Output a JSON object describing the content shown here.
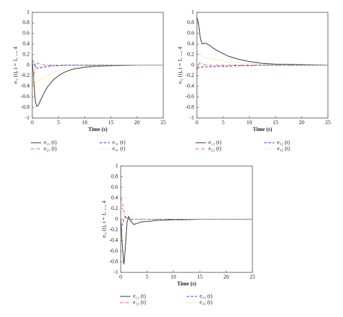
{
  "chart_data": [
    {
      "type": "line",
      "xlabel": "Time (s)",
      "ylabel": "eᵢ₁ (t), i = 1, ..., 4",
      "x": [
        0,
        0.3,
        0.6,
        0.9,
        1.2,
        1.5,
        2,
        2.5,
        3,
        4,
        5,
        6,
        7,
        8,
        10,
        12,
        15,
        20,
        25
      ],
      "xlim": [
        0,
        25
      ],
      "xticks": [
        0,
        5,
        10,
        15,
        20,
        25
      ],
      "ylim": [
        -1,
        1
      ],
      "yticks": [
        -1,
        -0.8,
        -0.6,
        -0.4,
        -0.2,
        0,
        0.2,
        0.4,
        0.6,
        0.8,
        1
      ],
      "series": [
        {
          "name": "e₁₁ (t)",
          "color": "#333333",
          "line_style": "solid",
          "values": [
            0.05,
            -0.3,
            -0.7,
            -0.78,
            -0.75,
            -0.68,
            -0.58,
            -0.48,
            -0.4,
            -0.28,
            -0.2,
            -0.14,
            -0.1,
            -0.07,
            -0.04,
            -0.02,
            -0.01,
            0,
            0
          ]
        },
        {
          "name": "e₂₁ (t)",
          "color": "#e0533a",
          "line_style": "dashdot",
          "values": [
            -0.4,
            -0.2,
            0,
            0.05,
            0.03,
            0.02,
            0.01,
            0,
            0,
            0,
            0,
            0,
            0,
            0,
            0,
            0,
            0,
            0,
            0
          ]
        },
        {
          "name": "e₃₁ (t)",
          "color": "#3a3ad0",
          "line_style": "dashed",
          "values": [
            0.1,
            0.05,
            -0.02,
            -0.05,
            -0.06,
            -0.05,
            -0.04,
            -0.03,
            -0.02,
            -0.01,
            -0.01,
            0,
            0,
            0,
            0,
            0,
            0,
            0,
            0
          ]
        },
        {
          "name": "e₄₁ (t)",
          "color": "#e3d070",
          "line_style": "dotted",
          "values": [
            -0.1,
            -0.3,
            -0.35,
            -0.33,
            -0.3,
            -0.28,
            -0.25,
            -0.22,
            -0.19,
            -0.14,
            -0.1,
            -0.08,
            -0.06,
            -0.04,
            -0.02,
            -0.01,
            0,
            0,
            0
          ]
        }
      ]
    },
    {
      "type": "line",
      "xlabel": "Time (s)",
      "ylabel": "eᵢ₂ (t), i = 1, ..., 4",
      "x": [
        0,
        0.3,
        0.6,
        0.9,
        1.2,
        1.5,
        2,
        2.5,
        3,
        4,
        5,
        6,
        7,
        8,
        10,
        12,
        15,
        20,
        25
      ],
      "xlim": [
        0,
        25
      ],
      "xticks": [
        0,
        5,
        10,
        15,
        20,
        25
      ],
      "ylim": [
        -1,
        1
      ],
      "yticks": [
        -1,
        -0.8,
        -0.6,
        -0.4,
        -0.2,
        0,
        0.2,
        0.4,
        0.6,
        0.8,
        1
      ],
      "series": [
        {
          "name": "e₁₂ (t)",
          "color": "#333333",
          "line_style": "solid",
          "values": [
            0.9,
            0.8,
            0.55,
            0.42,
            0.4,
            0.42,
            0.4,
            0.37,
            0.33,
            0.27,
            0.22,
            0.17,
            0.14,
            0.11,
            0.07,
            0.04,
            0.02,
            0.01,
            0
          ]
        },
        {
          "name": "e₂₂ (t)",
          "color": "#e0533a",
          "line_style": "dashdot",
          "values": [
            -0.1,
            0,
            0.05,
            0.03,
            0.02,
            0.01,
            0,
            0,
            0,
            0,
            0,
            0,
            0,
            0,
            0,
            0,
            0,
            0,
            0
          ]
        },
        {
          "name": "e₃₂ (t)",
          "color": "#3a3ad0",
          "line_style": "dashed",
          "values": [
            -0.05,
            -0.05,
            -0.04,
            -0.04,
            -0.03,
            -0.03,
            -0.03,
            -0.03,
            -0.03,
            -0.02,
            -0.02,
            -0.02,
            -0.01,
            -0.01,
            -0.01,
            0,
            0,
            0,
            0
          ]
        },
        {
          "name": "e₄₂ (t)",
          "color": "#e3d070",
          "line_style": "dotted",
          "values": [
            0.3,
            0.25,
            0.2,
            0.17,
            0.16,
            0.15,
            0.14,
            0.13,
            0.12,
            0.1,
            0.08,
            0.06,
            0.05,
            0.04,
            0.03,
            0.02,
            0.01,
            0,
            0
          ]
        }
      ]
    },
    {
      "type": "line",
      "xlabel": "Time (s)",
      "ylabel": "eᵢ₃ (t), i = 1, ..., 4",
      "x": [
        0,
        0.3,
        0.6,
        0.9,
        1.2,
        1.5,
        2,
        2.5,
        3,
        4,
        5,
        6,
        7,
        8,
        10,
        12,
        15,
        20,
        25
      ],
      "xlim": [
        0,
        25
      ],
      "xticks": [
        0,
        5,
        10,
        15,
        20,
        25
      ],
      "ylim": [
        -1,
        1
      ],
      "yticks": [
        -1,
        -0.8,
        -0.6,
        -0.4,
        -0.2,
        0,
        0.2,
        0.4,
        0.6,
        0.8,
        1
      ],
      "series": [
        {
          "name": "e₁₃ (t)",
          "color": "#333333",
          "line_style": "solid",
          "values": [
            0,
            -0.5,
            -0.85,
            -0.5,
            -0.05,
            0.05,
            -0.05,
            -0.1,
            -0.08,
            -0.05,
            -0.04,
            -0.03,
            -0.02,
            -0.02,
            -0.01,
            -0.01,
            0,
            0,
            0
          ]
        },
        {
          "name": "e₂₃ (t)",
          "color": "#e0533a",
          "line_style": "dashdot",
          "values": [
            0.4,
            0.3,
            0.15,
            0.05,
            0,
            -0.02,
            -0.01,
            0,
            0,
            0,
            0,
            0,
            0,
            0,
            0,
            0,
            0,
            0,
            0
          ]
        },
        {
          "name": "e₃₃ (t)",
          "color": "#3a3ad0",
          "line_style": "dashed",
          "values": [
            -0.2,
            -0.1,
            0,
            0.05,
            0.03,
            0,
            0,
            0,
            0,
            0,
            0,
            0,
            0,
            0,
            0,
            0,
            0,
            0,
            0
          ]
        },
        {
          "name": "e₄₃ (t)",
          "color": "#e3d070",
          "line_style": "dotted",
          "values": [
            0.2,
            0.1,
            0.05,
            0.02,
            0,
            0,
            0,
            0,
            0,
            0,
            0,
            0,
            0,
            0,
            0,
            0,
            0,
            0,
            0
          ]
        }
      ]
    }
  ]
}
